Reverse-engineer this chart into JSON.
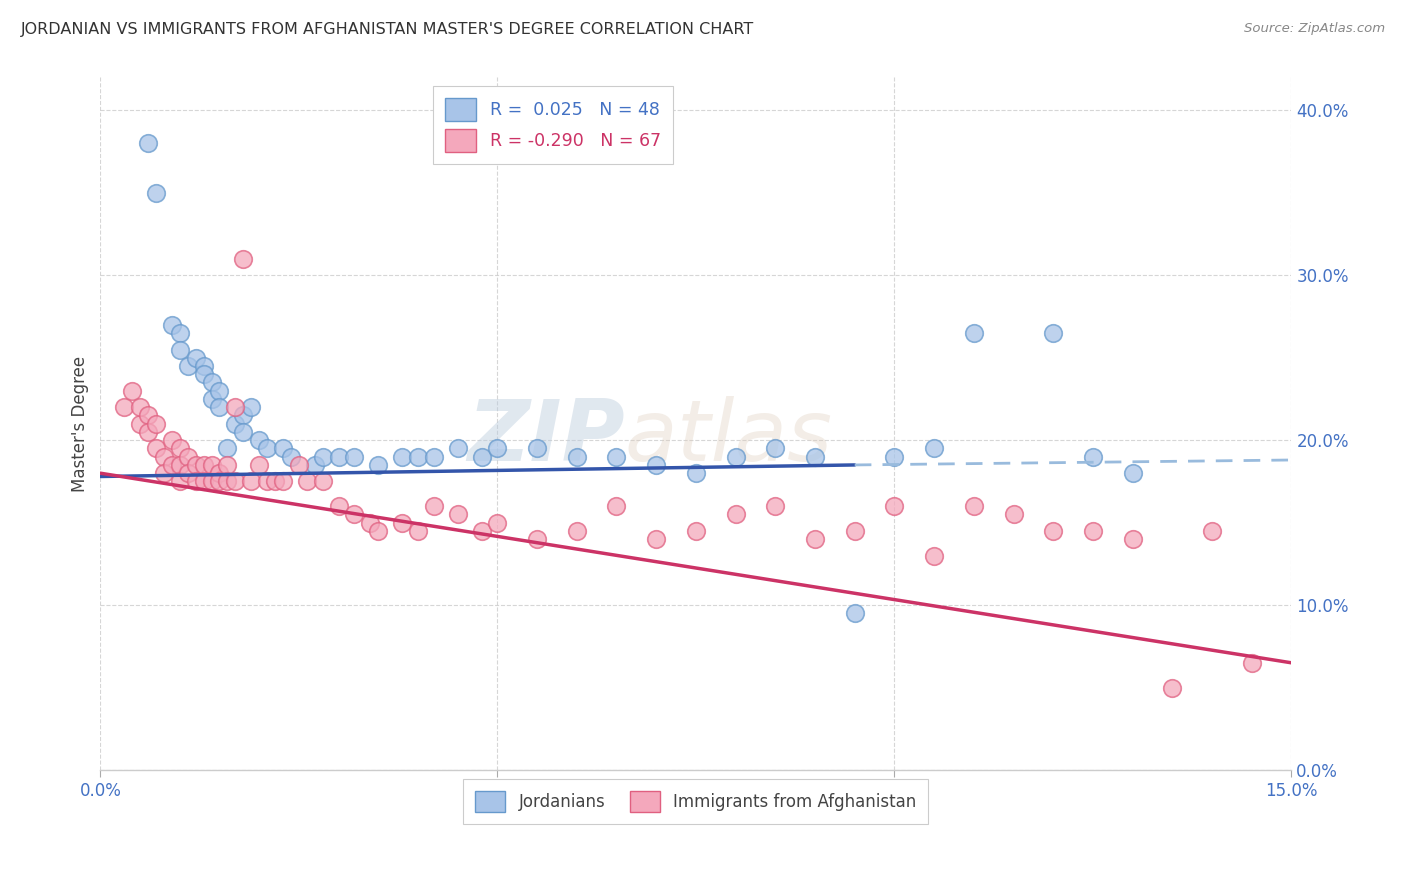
{
  "title": "JORDANIAN VS IMMIGRANTS FROM AFGHANISTAN MASTER'S DEGREE CORRELATION CHART",
  "source": "Source: ZipAtlas.com",
  "ylabel": "Master's Degree",
  "xlim": [
    0.0,
    0.15
  ],
  "ylim": [
    0.0,
    0.42
  ],
  "xticks": [
    0.0,
    0.05,
    0.1,
    0.15
  ],
  "xtick_labels": [
    "0.0%",
    "5.0%",
    "10.0%",
    "15.0%"
  ],
  "yticks": [
    0.0,
    0.1,
    0.2,
    0.3,
    0.4
  ],
  "ytick_labels": [
    "0.0%",
    "10.0%",
    "20.0%",
    "30.0%",
    "40.0%"
  ],
  "blue_color": "#a8c4e8",
  "pink_color": "#f4a8bc",
  "blue_edge_color": "#6699cc",
  "pink_edge_color": "#e06080",
  "blue_line_color": "#3355aa",
  "pink_line_color": "#cc3366",
  "dashed_line_color": "#99bbdd",
  "label_jordanians": "Jordanians",
  "label_afghanistan": "Immigrants from Afghanistan",
  "watermark_zip": "ZIP",
  "watermark_atlas": "atlas",
  "blue_scatter_x": [
    0.006,
    0.007,
    0.009,
    0.01,
    0.01,
    0.011,
    0.012,
    0.013,
    0.013,
    0.014,
    0.014,
    0.015,
    0.015,
    0.016,
    0.017,
    0.018,
    0.018,
    0.019,
    0.02,
    0.021,
    0.023,
    0.024,
    0.027,
    0.028,
    0.03,
    0.032,
    0.035,
    0.038,
    0.04,
    0.042,
    0.045,
    0.048,
    0.05,
    0.055,
    0.06,
    0.065,
    0.07,
    0.075,
    0.08,
    0.085,
    0.09,
    0.095,
    0.1,
    0.105,
    0.11,
    0.12,
    0.125,
    0.13
  ],
  "blue_scatter_y": [
    0.38,
    0.35,
    0.27,
    0.265,
    0.255,
    0.245,
    0.25,
    0.245,
    0.24,
    0.235,
    0.225,
    0.23,
    0.22,
    0.195,
    0.21,
    0.215,
    0.205,
    0.22,
    0.2,
    0.195,
    0.195,
    0.19,
    0.185,
    0.19,
    0.19,
    0.19,
    0.185,
    0.19,
    0.19,
    0.19,
    0.195,
    0.19,
    0.195,
    0.195,
    0.19,
    0.19,
    0.185,
    0.18,
    0.19,
    0.195,
    0.19,
    0.095,
    0.19,
    0.195,
    0.265,
    0.265,
    0.19,
    0.18
  ],
  "pink_scatter_x": [
    0.003,
    0.004,
    0.005,
    0.005,
    0.006,
    0.006,
    0.007,
    0.007,
    0.008,
    0.008,
    0.009,
    0.009,
    0.01,
    0.01,
    0.01,
    0.011,
    0.011,
    0.012,
    0.012,
    0.013,
    0.013,
    0.014,
    0.014,
    0.015,
    0.015,
    0.016,
    0.016,
    0.017,
    0.017,
    0.018,
    0.019,
    0.02,
    0.021,
    0.022,
    0.023,
    0.025,
    0.026,
    0.028,
    0.03,
    0.032,
    0.034,
    0.035,
    0.038,
    0.04,
    0.042,
    0.045,
    0.048,
    0.05,
    0.055,
    0.06,
    0.065,
    0.07,
    0.075,
    0.08,
    0.085,
    0.09,
    0.095,
    0.1,
    0.105,
    0.11,
    0.115,
    0.12,
    0.125,
    0.13,
    0.135,
    0.14,
    0.145
  ],
  "pink_scatter_y": [
    0.22,
    0.23,
    0.21,
    0.22,
    0.215,
    0.205,
    0.21,
    0.195,
    0.19,
    0.18,
    0.2,
    0.185,
    0.195,
    0.185,
    0.175,
    0.19,
    0.18,
    0.185,
    0.175,
    0.185,
    0.175,
    0.185,
    0.175,
    0.18,
    0.175,
    0.185,
    0.175,
    0.22,
    0.175,
    0.31,
    0.175,
    0.185,
    0.175,
    0.175,
    0.175,
    0.185,
    0.175,
    0.175,
    0.16,
    0.155,
    0.15,
    0.145,
    0.15,
    0.145,
    0.16,
    0.155,
    0.145,
    0.15,
    0.14,
    0.145,
    0.16,
    0.14,
    0.145,
    0.155,
    0.16,
    0.14,
    0.145,
    0.16,
    0.13,
    0.16,
    0.155,
    0.145,
    0.145,
    0.14,
    0.05,
    0.145,
    0.065
  ],
  "blue_trend_x": [
    0.0,
    0.095
  ],
  "blue_trend_y": [
    0.178,
    0.185
  ],
  "dashed_trend_x": [
    0.095,
    0.15
  ],
  "dashed_trend_y": [
    0.185,
    0.188
  ],
  "pink_trend_x": [
    0.0,
    0.15
  ],
  "pink_trend_y": [
    0.18,
    0.065
  ],
  "bg_color": "#ffffff",
  "grid_color": "#cccccc"
}
